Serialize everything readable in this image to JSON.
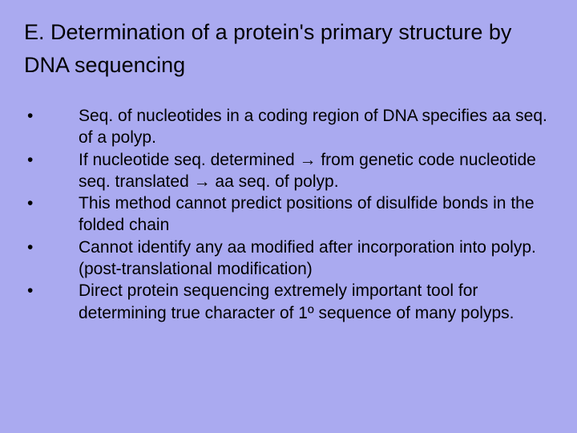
{
  "background_color": "#aaaaf0",
  "text_color": "#000000",
  "title": {
    "text": "E. Determination of a protein's primary structure by DNA sequencing",
    "fontsize": 27,
    "fontweight": "normal"
  },
  "bullets": {
    "marker": "•",
    "fontsize": 21,
    "items": [
      "Seq. of nucleotides in a coding region of DNA specifies aa seq. of a polyp.",
      "If nucleotide seq. determined → from genetic code nucleotide seq. translated → aa seq. of polyp.",
      "This method cannot predict positions of disulfide bonds in the folded chain",
      "Cannot identify any aa modified after incorporation into polyp. (post-translational modification)",
      "Direct protein sequencing extremely important tool for determining true character of 1º sequence of many polyps."
    ]
  }
}
